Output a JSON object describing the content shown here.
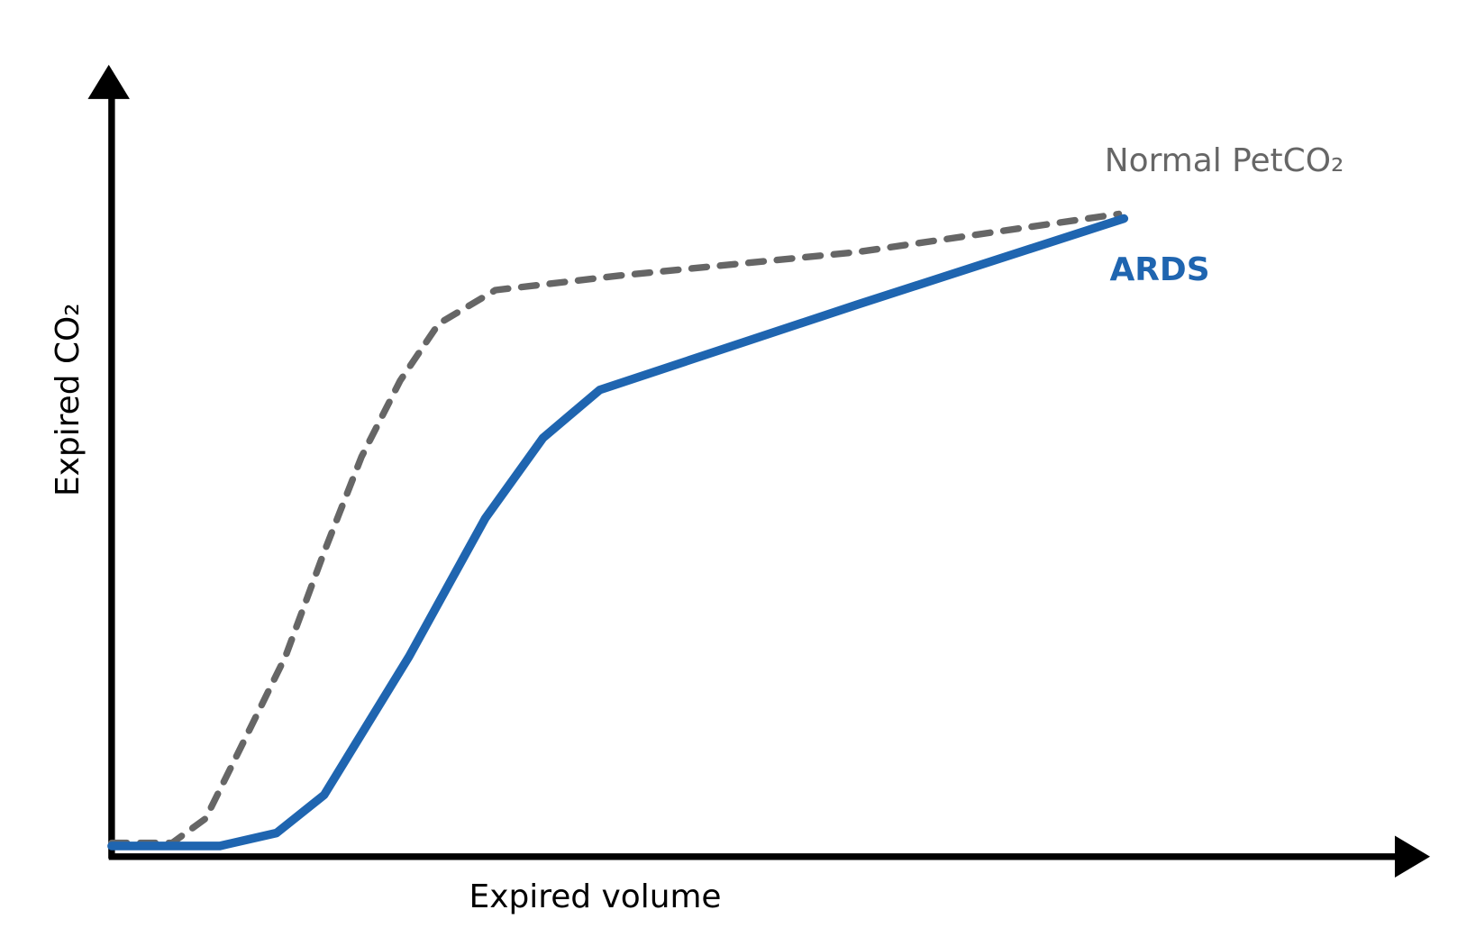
{
  "chart_data": {
    "type": "line",
    "x_label": "Expired volume",
    "y_label": "Expired CO₂",
    "xlim": [
      0,
      100
    ],
    "ylim": [
      0,
      100
    ],
    "series": [
      {
        "name": "Normal PetCO₂",
        "color": "#666666",
        "dashed": true,
        "x": [
          0,
          4.7,
          7.3,
          10.6,
          13.5,
          16.5,
          19.4,
          22.4,
          25.4,
          29.8,
          39.4,
          57.9,
          78.2
        ],
        "values": [
          1.8,
          1.8,
          5,
          16.3,
          26.3,
          40,
          52.5,
          62.5,
          70,
          74.4,
          76.3,
          79.4,
          84.4
        ]
      },
      {
        "name": "ARDS",
        "color": "#1f65b0",
        "dashed": false,
        "x": [
          0,
          8.4,
          12.8,
          16.5,
          23.1,
          29.0,
          33.5,
          37.9,
          57.9,
          78.6
        ],
        "values": [
          1.4,
          1.4,
          3.1,
          8.1,
          26.3,
          44.4,
          55,
          61.3,
          72.5,
          83.8
        ]
      }
    ]
  }
}
